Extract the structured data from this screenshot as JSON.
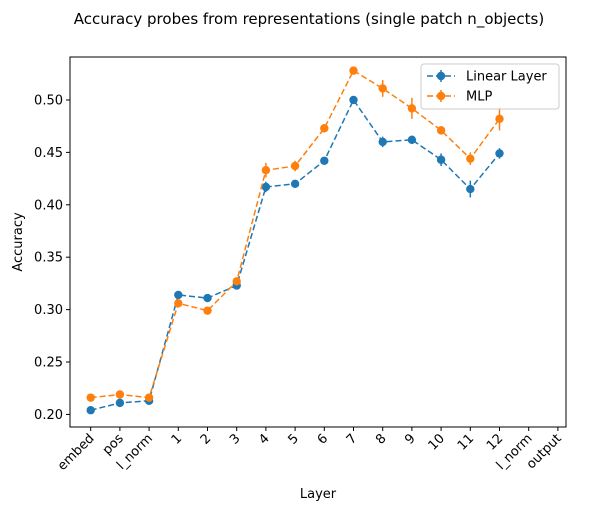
{
  "chart_data": {
    "type": "line",
    "title": "Accuracy probes from representations (single patch n_objects)",
    "xlabel": "Layer",
    "ylabel": "Accuracy",
    "categories": [
      "embed",
      "pos",
      "l_norm",
      "1",
      "2",
      "3",
      "4",
      "5",
      "6",
      "7",
      "8",
      "9",
      "10",
      "11",
      "12",
      "l_norm",
      "output"
    ],
    "ylim": [
      0.188,
      0.541
    ],
    "yticks": [
      "0.20",
      "0.25",
      "0.30",
      "0.35",
      "0.40",
      "0.45",
      "0.50"
    ],
    "legend_position": "top-right",
    "grid": false,
    "series": [
      {
        "name": "Linear Layer",
        "color": "#1f77b4",
        "values": [
          0.204,
          0.211,
          0.213,
          0.314,
          0.311,
          0.323,
          0.417,
          0.42,
          0.442,
          0.5,
          0.46,
          0.462,
          0.443,
          0.415,
          0.449,
          null,
          null
        ],
        "errors": [
          0.002,
          0.004,
          0.003,
          0.002,
          0.002,
          0.003,
          0.005,
          0.003,
          0.003,
          0.002,
          0.005,
          0.004,
          0.006,
          0.008,
          0.005,
          null,
          null
        ]
      },
      {
        "name": "MLP",
        "color": "#ff7f0e",
        "values": [
          0.216,
          0.219,
          0.216,
          0.306,
          0.299,
          0.327,
          0.433,
          0.437,
          0.473,
          0.528,
          0.511,
          0.492,
          0.471,
          0.444,
          0.482,
          null,
          null
        ],
        "errors": [
          0.003,
          0.002,
          0.002,
          0.003,
          0.002,
          0.003,
          0.007,
          0.005,
          0.004,
          0.003,
          0.008,
          0.01,
          0.004,
          0.006,
          0.011,
          null,
          null
        ]
      }
    ]
  }
}
